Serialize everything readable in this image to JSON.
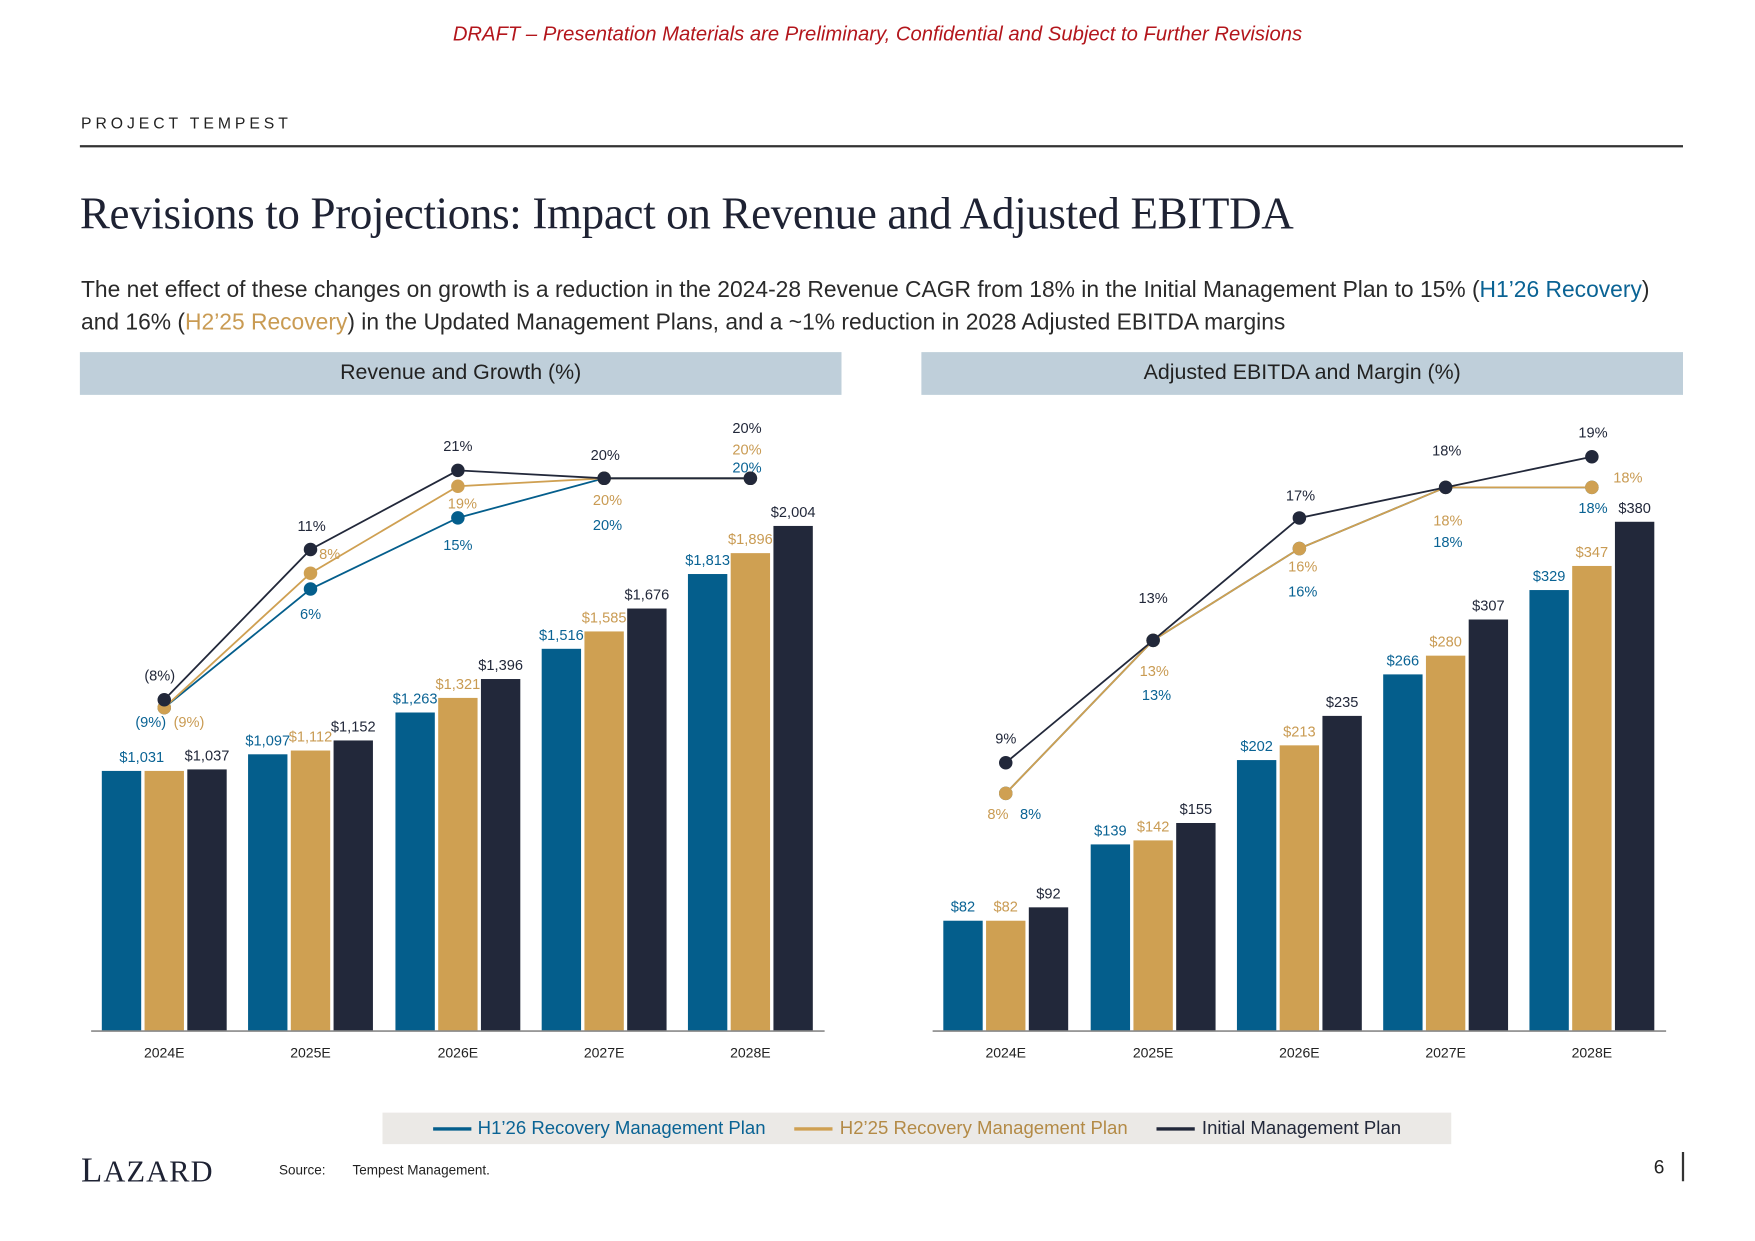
{
  "draft_notice": "DRAFT – Presentation Materials are Preliminary, Confidential and Subject to Further Revisions",
  "project": "PROJECT TEMPEST",
  "title": "Revisions to Projections: Impact on Revenue and Adjusted EBITDA",
  "paragraph": {
    "part1": "The net effect of these changes on growth is a reduction in the 2024-28 Revenue CAGR from 18% in the Initial Management Plan to 15% (",
    "blue_text": "H1’26 Recovery",
    "part2": ") and 16% (",
    "gold_text": "H2’25 Recovery",
    "part3": ") in the Updated Management Plans, and a ~1% reduction in 2028 Adjusted EBITDA margins"
  },
  "colors": {
    "h1_26": "#045e8c",
    "h2_25": "#cfa052",
    "initial": "#22283a",
    "header_bg": "#bfcfda",
    "draft_red": "#b3161c"
  },
  "legend": [
    {
      "label": "H1’26 Recovery Management Plan",
      "color": "#045e8c"
    },
    {
      "label": "H2’25 Recovery Management Plan",
      "color": "#cfa052"
    },
    {
      "label": "Initial Management Plan",
      "color": "#22283a"
    }
  ],
  "chart_data": [
    {
      "type": "bar+line",
      "title": "Revenue and Growth (%)",
      "categories": [
        "2024E",
        "2025E",
        "2026E",
        "2027E",
        "2028E"
      ],
      "value_unit": "$M",
      "line_unit": "% growth",
      "series": [
        {
          "name": "H1’26 Recovery Management Plan",
          "values": [
            1031,
            1097,
            1263,
            1516,
            1813
          ],
          "line": [
            -9,
            6,
            15,
            20,
            20
          ]
        },
        {
          "name": "H2’25 Recovery Management Plan",
          "values": [
            1031,
            1112,
            1321,
            1585,
            1896
          ],
          "line": [
            -9,
            8,
            19,
            20,
            20
          ]
        },
        {
          "name": "Initial Management Plan",
          "values": [
            1037,
            1152,
            1396,
            1676,
            2004
          ],
          "line": [
            -8,
            11,
            21,
            20,
            20
          ]
        }
      ],
      "grid": false
    },
    {
      "type": "bar+line",
      "title": "Adjusted EBITDA and Margin (%)",
      "categories": [
        "2024E",
        "2025E",
        "2026E",
        "2027E",
        "2028E"
      ],
      "value_unit": "$M",
      "line_unit": "% margin",
      "series": [
        {
          "name": "H1’26 Recovery Management Plan",
          "values": [
            82,
            139,
            202,
            266,
            329
          ],
          "line": [
            8,
            13,
            16,
            18,
            18
          ]
        },
        {
          "name": "H2’25 Recovery Management Plan",
          "values": [
            82,
            142,
            213,
            280,
            347
          ],
          "line": [
            8,
            13,
            16,
            18,
            18
          ]
        },
        {
          "name": "Initial Management Plan",
          "values": [
            92,
            155,
            235,
            307,
            380
          ],
          "line": [
            9,
            13,
            17,
            18,
            19
          ]
        }
      ],
      "grid": false
    }
  ],
  "footer": {
    "logo": "LAZARD",
    "source_label": "Source:",
    "source_text": "Tempest Management.",
    "page": "6"
  }
}
